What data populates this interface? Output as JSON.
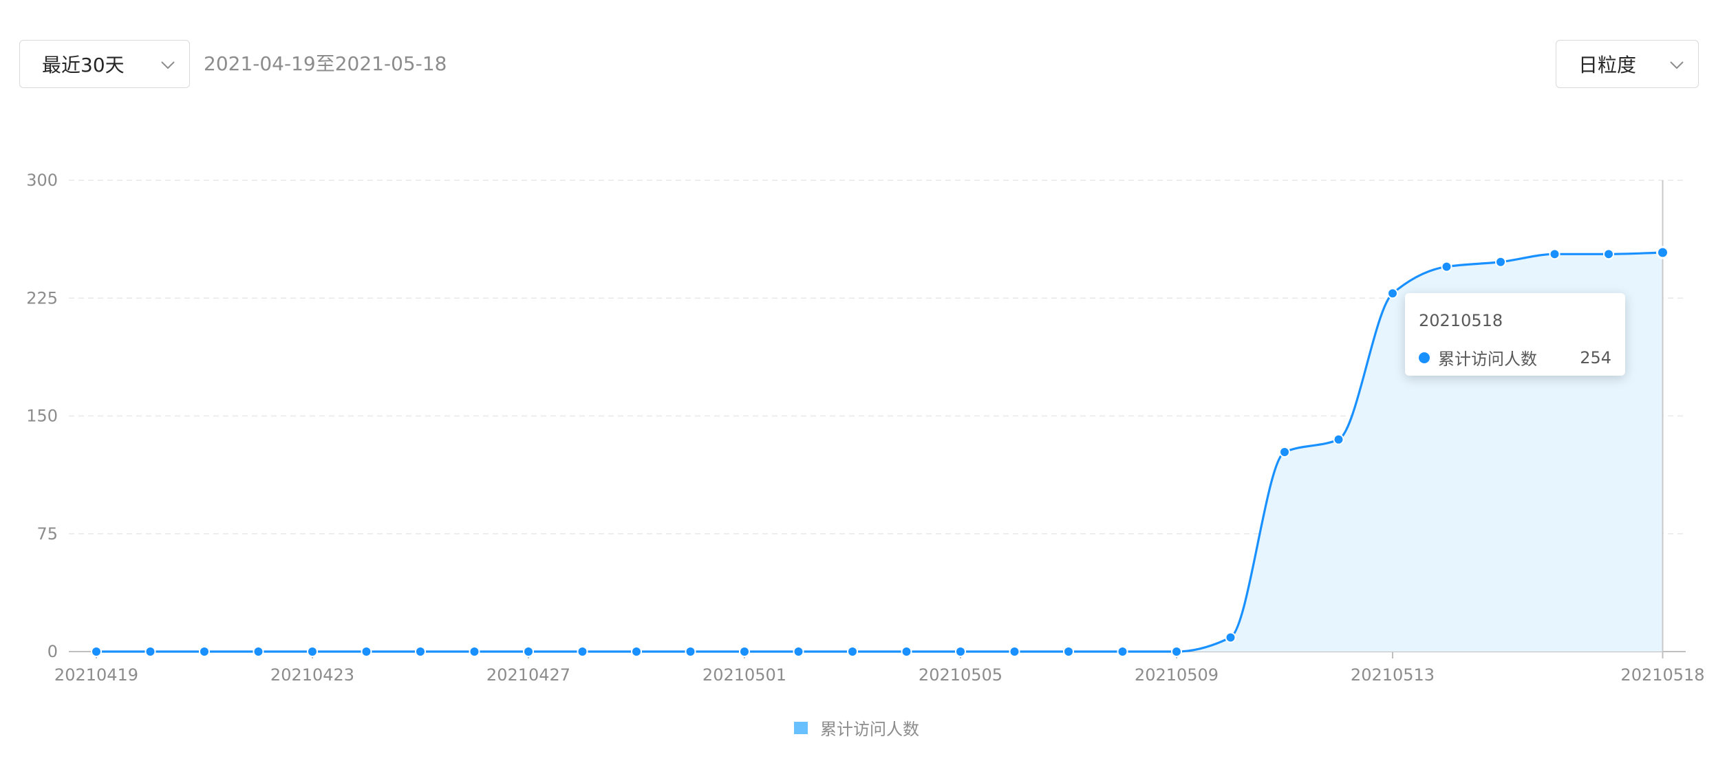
{
  "controls": {
    "range_select_value": "最近30天",
    "date_range_text": "2021-04-19至2021-05-18",
    "granularity_select_value": "日粒度",
    "chevron_icon": "chevron-down-icon"
  },
  "chart_data": {
    "type": "area",
    "title": "",
    "xlabel": "",
    "ylabel": "",
    "ylim": [
      0,
      300
    ],
    "y_ticks": [
      0,
      75,
      150,
      225,
      300
    ],
    "grid": true,
    "smooth": true,
    "x": [
      "20210419",
      "20210420",
      "20210421",
      "20210422",
      "20210423",
      "20210424",
      "20210425",
      "20210426",
      "20210427",
      "20210428",
      "20210429",
      "20210430",
      "20210501",
      "20210502",
      "20210503",
      "20210504",
      "20210505",
      "20210506",
      "20210507",
      "20210508",
      "20210509",
      "20210510",
      "20210511",
      "20210512",
      "20210513",
      "20210514",
      "20210515",
      "20210516",
      "20210517",
      "20210518"
    ],
    "x_tick_labels": [
      "20210419",
      "20210423",
      "20210427",
      "20210501",
      "20210505",
      "20210509",
      "20210513",
      "20210518"
    ],
    "series": [
      {
        "name": "累计访问人数",
        "color": "#1890ff",
        "values": [
          0,
          0,
          0,
          0,
          0,
          0,
          0,
          0,
          0,
          0,
          0,
          0,
          0,
          0,
          0,
          0,
          0,
          0,
          0,
          0,
          0,
          9,
          127,
          135,
          228,
          245,
          248,
          253,
          253,
          254
        ]
      }
    ],
    "legend": {
      "position": "bottom-center",
      "label": "累计访问人数",
      "color": "#69c0ff"
    },
    "tooltip": {
      "title": "20210518",
      "series_name": "累计访问人数",
      "value": "254"
    },
    "highlight_index": 29
  }
}
